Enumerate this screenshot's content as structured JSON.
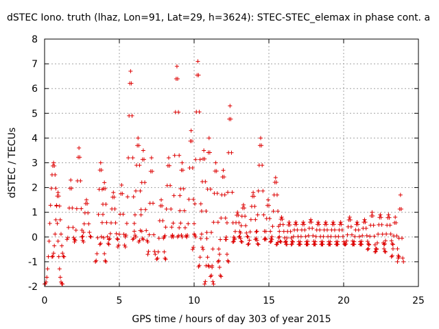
{
  "chart_data": {
    "type": "scatter",
    "title": "dSTEC Iono. truth (lhaz, Lon=91, Lat=29, h=3624): STEC-STEC_elemax in phase cont. a",
    "xlabel": "GPS time / hours of day 303 of year 2015",
    "ylabel": "dSTEC  / TECUs",
    "xlim": [
      0,
      25
    ],
    "ylim": [
      -2,
      8
    ],
    "x_ticks": [
      0,
      5,
      10,
      15,
      20,
      25
    ],
    "y_ticks": [
      -2,
      -1,
      0,
      1,
      2,
      3,
      4,
      5,
      6,
      7,
      8
    ],
    "x_tick_labels": [
      "0",
      "5",
      "10",
      "15",
      "20",
      "25"
    ],
    "y_tick_labels": [
      "-2",
      "-1",
      "0",
      "1",
      "2",
      "3",
      "4",
      "5",
      "6",
      "7",
      "8"
    ],
    "grid": true,
    "marker": "plus",
    "color": "#dd0000",
    "x_step": 0.05,
    "tracks": [
      [
        0.0,
        1.2,
        -1.9,
        3.0
      ],
      [
        0.5,
        1.3,
        -0.8,
        1.8
      ],
      [
        1.5,
        2.0,
        -0.1,
        2.3
      ],
      [
        2.0,
        2.6,
        -0.2,
        3.6
      ],
      [
        2.5,
        3.1,
        0.0,
        1.5
      ],
      [
        3.4,
        4.1,
        -1.0,
        3.0
      ],
      [
        3.7,
        4.3,
        -0.3,
        2.2
      ],
      [
        4.3,
        4.9,
        -0.1,
        1.8
      ],
      [
        4.9,
        5.4,
        -0.4,
        2.1
      ],
      [
        5.4,
        6.1,
        0.0,
        6.7
      ],
      [
        5.9,
        6.6,
        -0.1,
        4.0
      ],
      [
        6.3,
        6.9,
        -0.2,
        3.5
      ],
      [
        6.9,
        7.4,
        -0.7,
        3.2
      ],
      [
        7.5,
        8.1,
        -0.9,
        1.5
      ],
      [
        8.0,
        8.6,
        0.0,
        3.2
      ],
      [
        8.5,
        9.2,
        0.0,
        6.9
      ],
      [
        8.9,
        9.5,
        0.0,
        3.0
      ],
      [
        9.5,
        10.1,
        0.0,
        4.3
      ],
      [
        9.9,
        10.6,
        -0.5,
        7.1
      ],
      [
        10.3,
        11.0,
        -1.2,
        3.5
      ],
      [
        10.7,
        11.3,
        -1.9,
        4.0
      ],
      [
        11.1,
        11.8,
        -1.6,
        3.0
      ],
      [
        11.6,
        12.3,
        -1.0,
        2.7
      ],
      [
        12.1,
        12.7,
        -0.1,
        5.3
      ],
      [
        12.6,
        13.2,
        -0.2,
        1.0
      ],
      [
        13.0,
        13.6,
        0.0,
        1.3
      ],
      [
        13.6,
        14.3,
        -0.3,
        1.8
      ],
      [
        14.1,
        14.8,
        -0.1,
        4.0
      ],
      [
        14.7,
        15.2,
        -0.1,
        1.5
      ],
      [
        15.1,
        15.8,
        -0.2,
        2.4
      ],
      [
        15.5,
        16.2,
        -0.3,
        0.8
      ],
      [
        16.1,
        16.6,
        -0.2,
        0.6
      ],
      [
        16.5,
        17.1,
        -0.3,
        0.6
      ],
      [
        17.0,
        17.6,
        -0.3,
        0.6
      ],
      [
        17.5,
        18.1,
        -0.3,
        0.7
      ],
      [
        18.0,
        18.6,
        -0.3,
        0.6
      ],
      [
        18.5,
        19.1,
        -0.3,
        0.6
      ],
      [
        19.0,
        19.6,
        -0.3,
        0.6
      ],
      [
        19.5,
        20.1,
        -0.3,
        0.6
      ],
      [
        20.1,
        20.7,
        -0.3,
        0.8
      ],
      [
        20.6,
        21.2,
        -0.3,
        0.6
      ],
      [
        21.1,
        21.7,
        -0.3,
        0.7
      ],
      [
        21.6,
        22.2,
        -0.5,
        1.0
      ],
      [
        22.1,
        22.8,
        -0.6,
        0.9
      ],
      [
        22.7,
        23.3,
        -0.3,
        0.9
      ],
      [
        23.2,
        23.7,
        -0.8,
        0.8
      ],
      [
        23.6,
        24.0,
        -1.0,
        1.7
      ]
    ]
  }
}
